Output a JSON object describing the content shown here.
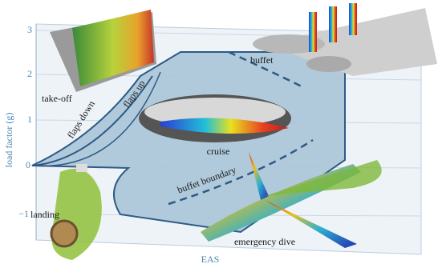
{
  "axis": {
    "y_label": "load factor (g)",
    "x_label": "EAS",
    "y_ticks": [
      "3",
      "2",
      "1",
      "0",
      "−1"
    ]
  },
  "regions": {
    "take_off": "take-off",
    "flaps_down": "flaps down",
    "flaps_up": "flaps up",
    "buffet": "buffet",
    "cruise": "cruise",
    "buffet_boundary": "buffet boundary",
    "landing": "landing",
    "emergency_dive": "emergency dive"
  }
}
